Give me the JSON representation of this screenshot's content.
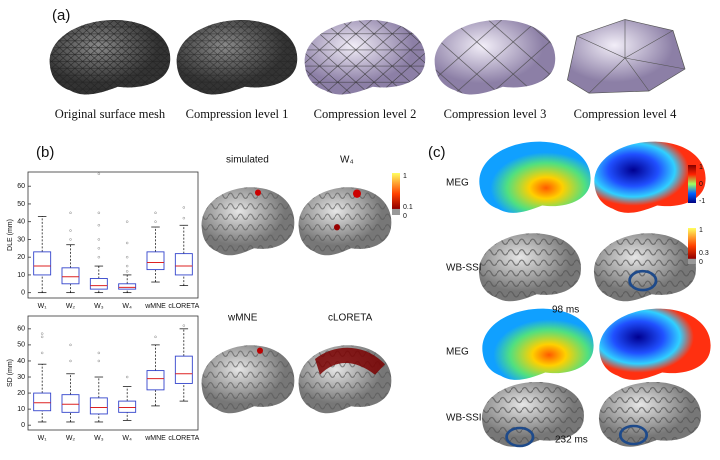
{
  "panel_a": {
    "label": "(a)",
    "captions": [
      "Original surface mesh",
      "Compression level 1",
      "Compression level 2",
      "Compression level 3",
      "Compression level 4"
    ]
  },
  "panel_b": {
    "label": "(b)",
    "brain_labels": [
      "simulated",
      "W₄",
      "wMNE",
      "cLORETA"
    ],
    "colorbar_ticks": [
      1,
      0.1,
      0
    ]
  },
  "panel_c": {
    "label": "(c)",
    "rows": [
      {
        "meg_label": "MEG",
        "ssi_label": "WB-SSI",
        "time": "98 ms"
      },
      {
        "meg_label": "MEG",
        "ssi_label": "WB-SSI",
        "time": "232 ms"
      }
    ],
    "meg_colorbar_ticks": [
      1,
      0,
      -1
    ],
    "ssi_colorbar_ticks": [
      1,
      0.3,
      0
    ]
  },
  "chart_data": [
    {
      "type": "box",
      "ylabel": "DLE (mm)",
      "categories": [
        "W₁",
        "W₂",
        "W₃",
        "W₄",
        "wMNE",
        "cLORETA"
      ],
      "min": [
        0,
        0,
        0,
        0,
        6,
        4
      ],
      "q1": [
        10,
        5,
        2,
        2,
        13,
        10
      ],
      "median": [
        15,
        9,
        4,
        3,
        17,
        15
      ],
      "q3": [
        23,
        14,
        8,
        5,
        23,
        22
      ],
      "max": [
        43,
        27,
        15,
        10,
        37,
        38
      ],
      "outliers": [
        [],
        [
          30,
          35,
          45
        ],
        [
          20,
          25,
          30,
          38,
          45,
          67
        ],
        [
          12,
          15,
          20,
          28,
          40
        ],
        [
          40,
          45
        ],
        [
          42,
          48
        ]
      ],
      "ylim": [
        -3,
        68
      ],
      "yticks": [
        0,
        10,
        20,
        30,
        40,
        50,
        60
      ],
      "box_color": "#3344cc",
      "median_color": "#dd2222"
    },
    {
      "type": "box",
      "ylabel": "SD (mm)",
      "categories": [
        "W₁",
        "W₂",
        "W₃",
        "W₄",
        "wMNE",
        "cLORETA"
      ],
      "min": [
        2,
        2,
        2,
        3,
        12,
        15
      ],
      "q1": [
        9,
        8,
        7,
        8,
        22,
        26
      ],
      "median": [
        14,
        13,
        11,
        11,
        29,
        32
      ],
      "q3": [
        20,
        19,
        17,
        15,
        34,
        43
      ],
      "max": [
        38,
        32,
        30,
        24,
        50,
        60
      ],
      "outliers": [
        [
          45,
          55,
          57
        ],
        [
          40,
          50
        ],
        [
          40,
          45
        ],
        [
          30
        ],
        [
          55
        ],
        [
          62
        ]
      ],
      "ylim": [
        -3,
        68
      ],
      "yticks": [
        0,
        10,
        20,
        30,
        40,
        50,
        60
      ],
      "box_color": "#3344cc",
      "median_color": "#dd2222"
    }
  ]
}
